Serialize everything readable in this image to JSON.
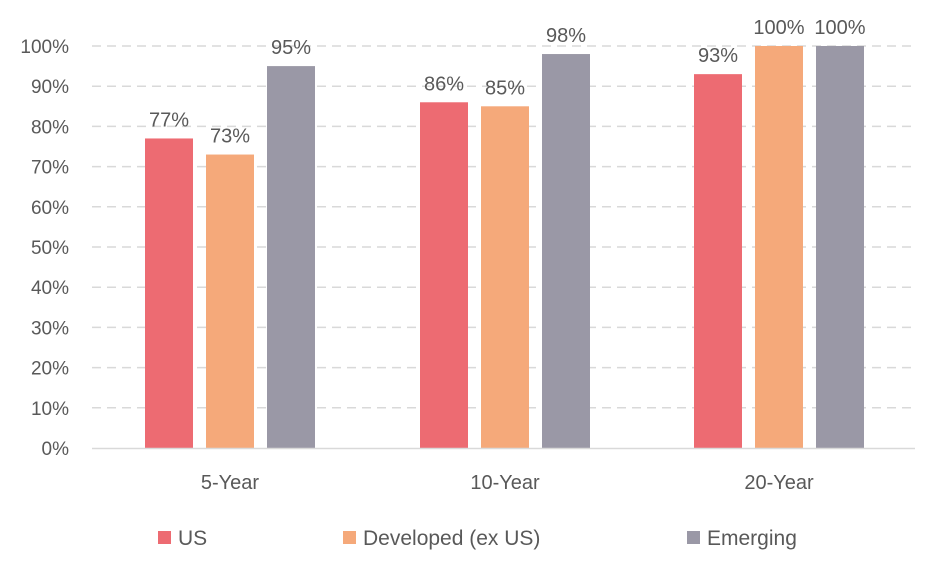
{
  "chart_data": {
    "type": "bar",
    "title": "",
    "xlabel": "",
    "ylabel": "",
    "ylim": [
      0,
      100
    ],
    "yticks": [
      "0%",
      "10%",
      "20%",
      "30%",
      "40%",
      "50%",
      "60%",
      "70%",
      "80%",
      "90%",
      "100%"
    ],
    "categories": [
      "5-Year",
      "10-Year",
      "20-Year"
    ],
    "series": [
      {
        "name": "US",
        "color": "#ED6B72",
        "values": [
          77,
          86,
          93
        ],
        "labels": [
          "77%",
          "86%",
          "93%"
        ]
      },
      {
        "name": "Developed (ex US)",
        "color": "#F5A97A",
        "values": [
          73,
          85,
          100
        ],
        "labels": [
          "73%",
          "85%",
          "100%"
        ]
      },
      {
        "name": "Emerging",
        "color": "#9A98A6",
        "values": [
          95,
          98,
          100
        ],
        "labels": [
          "95%",
          "98%",
          "100%"
        ]
      }
    ],
    "grid": true,
    "legend_position": "bottom"
  }
}
